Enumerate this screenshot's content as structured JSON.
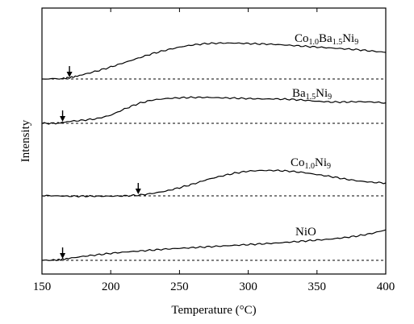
{
  "chart_data": {
    "type": "line",
    "title": "",
    "xlabel": "Temperature (°C)",
    "ylabel": "Intensity",
    "xlim": [
      150,
      400
    ],
    "xticks": [
      150,
      200,
      250,
      300,
      350,
      400
    ],
    "yticks_shown": false,
    "grid": false,
    "series": [
      {
        "name": "Co1.0Ba1.5Ni9",
        "label_parts": [
          [
            "Co",
            ""
          ],
          [
            "1.0",
            "sub"
          ],
          [
            "Ba",
            ""
          ],
          [
            "1.5",
            "sub"
          ],
          [
            "Ni",
            ""
          ],
          [
            "9",
            "sub"
          ]
        ],
        "baseline": 0,
        "onset_temperature": 170,
        "x": [
          150,
          165,
          170,
          175,
          180,
          190,
          200,
          210,
          220,
          230,
          240,
          250,
          260,
          270,
          280,
          290,
          300,
          310,
          320,
          330,
          340,
          350,
          360,
          370,
          380,
          390,
          400
        ],
        "y": [
          0.0,
          0.01,
          0.03,
          0.06,
          0.1,
          0.18,
          0.27,
          0.37,
          0.47,
          0.57,
          0.65,
          0.72,
          0.77,
          0.8,
          0.81,
          0.81,
          0.8,
          0.79,
          0.78,
          0.76,
          0.74,
          0.72,
          0.7,
          0.68,
          0.66,
          0.63,
          0.6
        ]
      },
      {
        "name": "Ba1.5Ni9",
        "label_parts": [
          [
            "Ba",
            ""
          ],
          [
            "1.5",
            "sub"
          ],
          [
            "Ni",
            ""
          ],
          [
            "9",
            "sub"
          ]
        ],
        "baseline": 0,
        "onset_temperature": 165,
        "x": [
          150,
          160,
          165,
          170,
          180,
          190,
          200,
          210,
          220,
          230,
          240,
          250,
          260,
          270,
          280,
          290,
          300,
          310,
          320,
          330,
          340,
          350,
          360,
          370,
          380,
          390,
          400
        ],
        "y": [
          0.0,
          0.0,
          0.02,
          0.05,
          0.08,
          0.12,
          0.21,
          0.37,
          0.51,
          0.6,
          0.64,
          0.66,
          0.67,
          0.67,
          0.66,
          0.65,
          0.64,
          0.63,
          0.63,
          0.62,
          0.6,
          0.57,
          0.55,
          0.55,
          0.56,
          0.55,
          0.53
        ]
      },
      {
        "name": "Co1.0Ni9",
        "label_parts": [
          [
            "Co",
            ""
          ],
          [
            "1.0",
            "sub"
          ],
          [
            "Ni",
            ""
          ],
          [
            "9",
            "sub"
          ]
        ],
        "baseline": 0,
        "onset_temperature": 220,
        "x": [
          150,
          160,
          170,
          180,
          190,
          200,
          210,
          220,
          230,
          240,
          250,
          260,
          270,
          280,
          290,
          300,
          310,
          320,
          330,
          340,
          350,
          360,
          370,
          380,
          390,
          400
        ],
        "y": [
          0.01,
          0.0,
          -0.01,
          -0.01,
          -0.01,
          -0.01,
          0.0,
          0.02,
          0.07,
          0.14,
          0.24,
          0.35,
          0.48,
          0.58,
          0.67,
          0.73,
          0.75,
          0.75,
          0.73,
          0.69,
          0.63,
          0.57,
          0.5,
          0.44,
          0.4,
          0.38
        ]
      },
      {
        "name": "NiO",
        "label_parts": [
          [
            "NiO",
            ""
          ]
        ],
        "baseline": 0,
        "onset_temperature": 165,
        "x": [
          150,
          160,
          165,
          170,
          180,
          190,
          200,
          210,
          220,
          230,
          240,
          250,
          260,
          270,
          280,
          290,
          300,
          310,
          320,
          330,
          340,
          350,
          360,
          370,
          380,
          390,
          400
        ],
        "y": [
          0.0,
          0.01,
          0.04,
          0.08,
          0.16,
          0.22,
          0.28,
          0.33,
          0.37,
          0.41,
          0.45,
          0.48,
          0.51,
          0.54,
          0.57,
          0.6,
          0.63,
          0.66,
          0.69,
          0.73,
          0.77,
          0.81,
          0.85,
          0.91,
          0.98,
          1.08,
          1.22
        ]
      }
    ]
  }
}
